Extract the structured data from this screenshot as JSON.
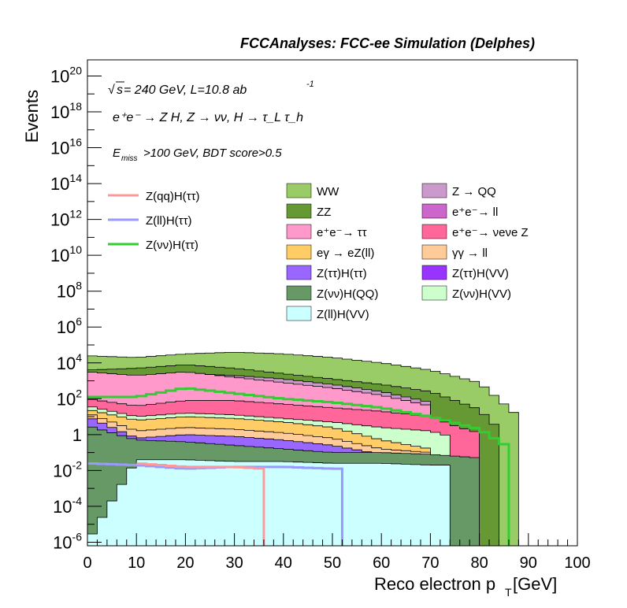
{
  "header": {
    "title": "FCCAnalyses: FCC-ee Simulation (Delphes)"
  },
  "annotations": {
    "sqrt_s": "s",
    "energy_lumi": " = 240 GeV, L=10.8 ab",
    "lumi_exponent": "-1",
    "process": "e⁺e⁻ → Z H, Z → νν, H → τ_L τ_h",
    "cut_prefix": "E",
    "cut_subscript": "miss",
    "cut_rest": ">100 GeV, BDT score>0.5"
  },
  "legend": {
    "lines": [
      {
        "label": "Z(qq)H(ττ)",
        "color": "#ff9999"
      },
      {
        "label": "Z(ll)H(ττ)",
        "color": "#9999ff"
      },
      {
        "label": "Z(νν)H(ττ)",
        "color": "#33cc33"
      }
    ],
    "col1": [
      {
        "label": "WW",
        "color": "#99cc66"
      },
      {
        "label": "ZZ",
        "color": "#669933"
      },
      {
        "label": "e⁺e⁻→ ττ",
        "color": "#ff99cc"
      },
      {
        "label": "eγ → eZ(ll)",
        "color": "#ffcc66"
      },
      {
        "label": "Z(ττ)H(ττ)",
        "color": "#9966ff"
      },
      {
        "label": "Z(νν)H(QQ)",
        "color": "#669966"
      },
      {
        "label": "Z(ll)H(VV)",
        "color": "#ccffff"
      }
    ],
    "col2": [
      {
        "label": "Z → QQ",
        "color": "#cc99cc"
      },
      {
        "label": "e⁺e⁻→ ll",
        "color": "#cc66cc"
      },
      {
        "label": "e⁺e⁻→ νeνe Z",
        "color": "#ff6699"
      },
      {
        "label": "γγ → ll",
        "color": "#ffcc99"
      },
      {
        "label": "Z(ττ)H(VV)",
        "color": "#9933ff"
      },
      {
        "label": "Z(νν)H(VV)",
        "color": "#ccffcc"
      }
    ]
  },
  "chart_data": {
    "type": "area",
    "xlabel": "Reco electron p",
    "xlabel_sub": "T",
    "xlabel_unit": " [GeV]",
    "ylabel": "Events",
    "xlim": [
      0,
      100
    ],
    "ylim_log10": [
      -6.2,
      20.9
    ],
    "log_y": true,
    "x_ticks": [
      "0",
      "10",
      "20",
      "30",
      "40",
      "50",
      "60",
      "70",
      "80",
      "90",
      "100"
    ],
    "y_tick_exponents": [
      20,
      18,
      16,
      14,
      12,
      10,
      8,
      6,
      4,
      2,
      0,
      -2,
      -4,
      -6
    ],
    "bin_width": 2,
    "stack_order": [
      "Z(ll)H(VV)",
      "Z(νν)H(QQ)",
      "Z(ττ)H(VV)",
      "Z(ττ)H(ττ)",
      "γγ → ll",
      "eγ → eZ(ll)",
      "Z(νν)H(VV)",
      "e⁺e⁻→ νeνe Z",
      "e⁺e⁻→ ττ",
      "e⁺e⁻→ ll",
      "Z → QQ",
      "ZZ",
      "WW"
    ],
    "stack_tops_log10": [
      {
        "name": "Z(ll)H(VV)",
        "x": [
          0,
          10,
          20,
          30,
          40,
          50,
          60,
          70,
          74
        ],
        "y": [
          -6,
          -1.4,
          -1.4,
          -1.5,
          -1.5,
          -1.6,
          -1.6,
          -1.7,
          -1.7
        ]
      },
      {
        "name": "Z(νν)H(QQ)",
        "x": [
          0,
          10,
          20,
          30,
          40,
          50,
          60,
          70,
          80
        ],
        "y": [
          0.5,
          -0.3,
          -0.4,
          -0.6,
          -0.8,
          -1.0,
          -1.0,
          -1.1,
          -1.3
        ]
      },
      {
        "name": "Z(ττ)H(VV)",
        "x": [
          0,
          10,
          20,
          30,
          40,
          50,
          60,
          70
        ],
        "y": [
          0.4,
          -0.8,
          -0.9,
          -1.1,
          -1.3,
          -1.2,
          -1.5,
          -1.5
        ]
      },
      {
        "name": "Z(ττ)H(ττ)",
        "x": [
          0,
          10,
          20,
          30,
          40,
          50,
          60,
          70
        ],
        "y": [
          1.0,
          -0.2,
          0.0,
          -0.1,
          -0.3,
          -0.6,
          -1.1,
          -1.3
        ]
      },
      {
        "name": "γγ → ll",
        "x": [
          0,
          10,
          20,
          30,
          40,
          50,
          60,
          70
        ],
        "y": [
          1.2,
          0.2,
          0.4,
          0.3,
          0.1,
          -0.2,
          -0.8,
          -1.0
        ]
      },
      {
        "name": "eγ → eZ(ll)",
        "x": [
          0,
          10,
          20,
          30,
          40,
          50,
          60,
          70
        ],
        "y": [
          1.4,
          0.8,
          1.0,
          0.9,
          0.7,
          0.4,
          -0.3,
          -0.8
        ]
      },
      {
        "name": "Z(νν)H(VV)",
        "x": [
          0,
          10,
          20,
          30,
          40,
          50,
          60,
          70,
          74
        ],
        "y": [
          1.6,
          1.0,
          1.2,
          1.1,
          0.9,
          0.7,
          0.4,
          0.2,
          -0.1
        ]
      },
      {
        "name": "e⁺e⁻→ νeνe Z",
        "x": [
          0,
          10,
          20,
          30,
          40,
          50,
          60,
          70,
          76,
          80
        ],
        "y": [
          2.0,
          1.6,
          1.9,
          1.9,
          1.7,
          1.5,
          1.3,
          1.0,
          0.4,
          0.1
        ]
      },
      {
        "name": "e⁺e⁻→ ττ",
        "x": [
          0,
          10,
          20,
          30,
          40,
          50,
          60,
          70
        ],
        "y": [
          3.5,
          3.3,
          3.5,
          3.2,
          2.9,
          2.6,
          2.2,
          1.6
        ]
      },
      {
        "name": "e⁺e⁻→ ll",
        "x": [
          0,
          10,
          20,
          30,
          40,
          50,
          60,
          70
        ],
        "y": [
          3.0,
          2.5,
          2.7,
          2.6,
          2.4,
          2.2,
          1.9,
          1.5
        ]
      },
      {
        "name": "Z → QQ",
        "x": [
          0,
          10,
          20,
          30,
          40,
          50,
          60,
          70
        ],
        "y": [
          3.2,
          3.2,
          3.4,
          3.3,
          3.1,
          2.8,
          2.4,
          1.8
        ]
      },
      {
        "name": "ZZ",
        "x": [
          0,
          10,
          20,
          30,
          40,
          50,
          60,
          70,
          80,
          84
        ],
        "y": [
          3.6,
          3.7,
          3.9,
          3.7,
          3.4,
          3.1,
          2.8,
          2.4,
          1.4,
          0.3
        ]
      },
      {
        "name": "WW",
        "x": [
          0,
          10,
          20,
          30,
          40,
          50,
          60,
          70,
          80,
          88
        ],
        "y": [
          4.4,
          4.3,
          4.5,
          4.6,
          4.5,
          4.3,
          4.0,
          3.6,
          2.9,
          1.0
        ]
      }
    ],
    "signal_lines_log10": [
      {
        "name": "Z(νν)H(ττ)",
        "x": [
          0,
          10,
          20,
          30,
          40,
          50,
          60,
          70,
          80,
          86
        ],
        "y": [
          2.1,
          2.1,
          2.6,
          2.3,
          2.0,
          1.8,
          1.5,
          1.0,
          0.3,
          -0.7
        ]
      },
      {
        "name": "Z(ll)H(ττ)",
        "x": [
          0,
          10,
          20,
          30,
          40,
          50,
          52
        ],
        "y": [
          -1.6,
          -1.7,
          -1.9,
          -1.8,
          -1.8,
          -1.9,
          -1.9
        ]
      },
      {
        "name": "Z(qq)H(ττ)",
        "x": [
          10,
          20,
          30,
          36
        ],
        "y": [
          -1.6,
          -1.8,
          -1.8,
          -1.9
        ]
      }
    ]
  }
}
